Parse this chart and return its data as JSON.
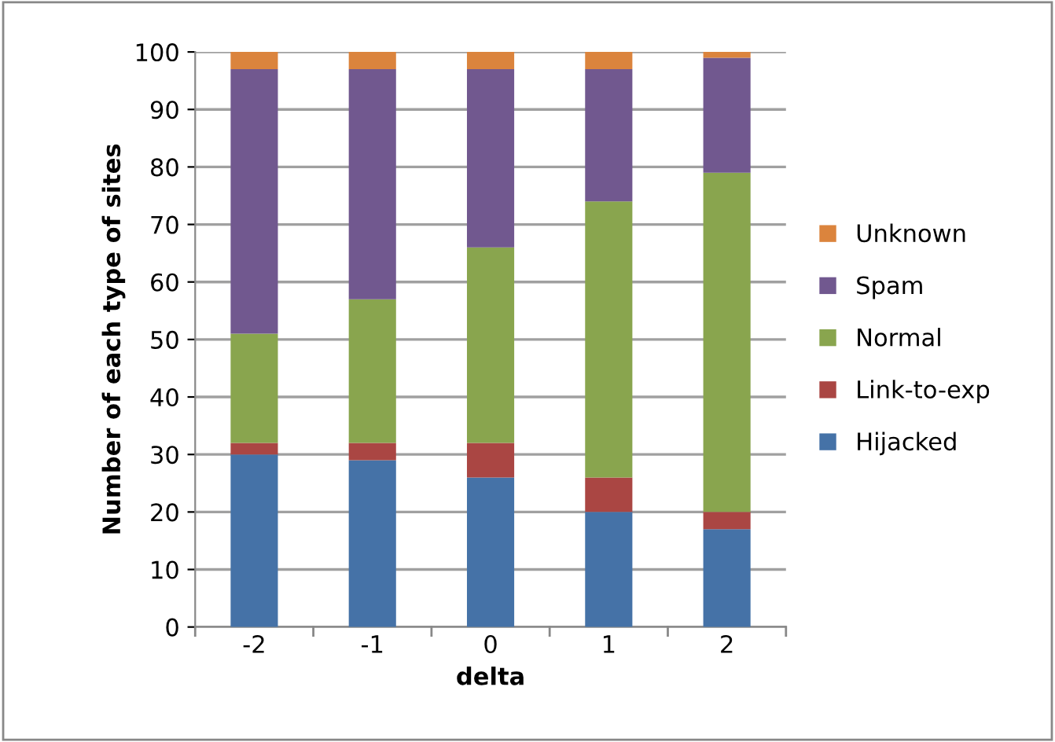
{
  "chart_data": {
    "type": "bar",
    "stacked": true,
    "xlabel": "delta",
    "ylabel": "Number of each type of sites",
    "categories": [
      "-2",
      "-1",
      "0",
      "1",
      "2"
    ],
    "series": [
      {
        "name": "Hijacked",
        "color": "#4572a7",
        "values": [
          30,
          29,
          26,
          20,
          17
        ]
      },
      {
        "name": "Link-to-exp",
        "color": "#aa4643",
        "values": [
          2,
          3,
          6,
          6,
          3
        ]
      },
      {
        "name": "Normal",
        "color": "#89a54e",
        "values": [
          19,
          25,
          34,
          48,
          59
        ]
      },
      {
        "name": "Spam",
        "color": "#71588f",
        "values": [
          46,
          40,
          31,
          23,
          20
        ]
      },
      {
        "name": "Unknown",
        "color": "#db843d",
        "values": [
          3,
          3,
          3,
          3,
          1
        ]
      }
    ],
    "ylim": [
      0,
      100
    ],
    "yticks": [
      0,
      10,
      20,
      30,
      40,
      50,
      60,
      70,
      80,
      90,
      100
    ],
    "grid": "y",
    "legend": "right"
  }
}
